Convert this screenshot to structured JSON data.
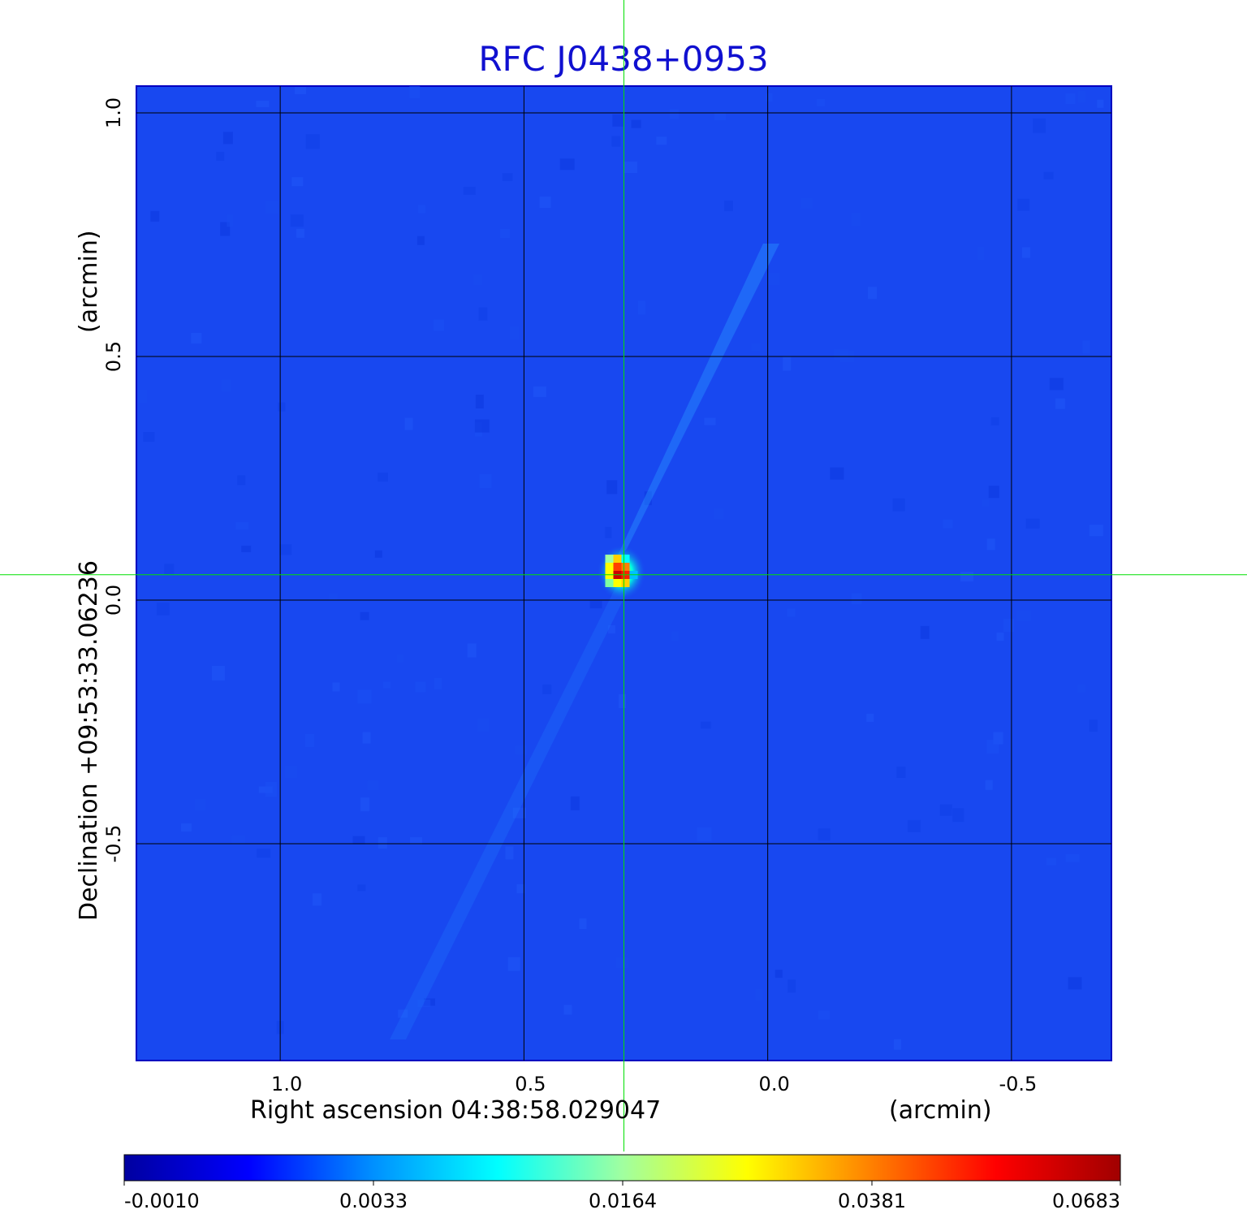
{
  "chart_data": {
    "type": "heatmap",
    "title": "RFC J0438+0953",
    "xlabel": "Right ascension  04:38:58.029047",
    "xunit": "(arcmin)",
    "ylabel": "Declination  +09:53:33.06236",
    "yunit": "(arcmin)",
    "x_ticks": [
      {
        "value": 1.0,
        "label": "1.0"
      },
      {
        "value": 0.5,
        "label": "0.5"
      },
      {
        "value": 0.0,
        "label": "0.0"
      },
      {
        "value": -0.5,
        "label": "-0.5"
      }
    ],
    "y_ticks": [
      {
        "value": 1.0,
        "label": "1.0"
      },
      {
        "value": 0.5,
        "label": "0.5"
      },
      {
        "value": 0.0,
        "label": "0.0"
      },
      {
        "value": -0.5,
        "label": "-0.5"
      }
    ],
    "xlim": [
      1.295,
      -0.705
    ],
    "ylim": [
      -0.945,
      1.055
    ],
    "grid": true,
    "crosshair": {
      "x": 0.295,
      "y": 0.052,
      "color": "#00e000"
    },
    "peak": {
      "x": 0.3,
      "y": 0.06,
      "value": 0.0683
    },
    "colormap": "jet",
    "colorbar": {
      "ticks": [
        "-0.0010",
        "0.0033",
        "0.0164",
        "0.0381",
        "0.0683"
      ],
      "colors": [
        "#0000a0",
        "#0000ff",
        "#0090ff",
        "#00ffff",
        "#a0ffa0",
        "#ffff00",
        "#ff8000",
        "#ff0000",
        "#a00000"
      ]
    },
    "background_color": "#1848f0",
    "grid_color": "#000000",
    "title_color": "#1010d0"
  }
}
